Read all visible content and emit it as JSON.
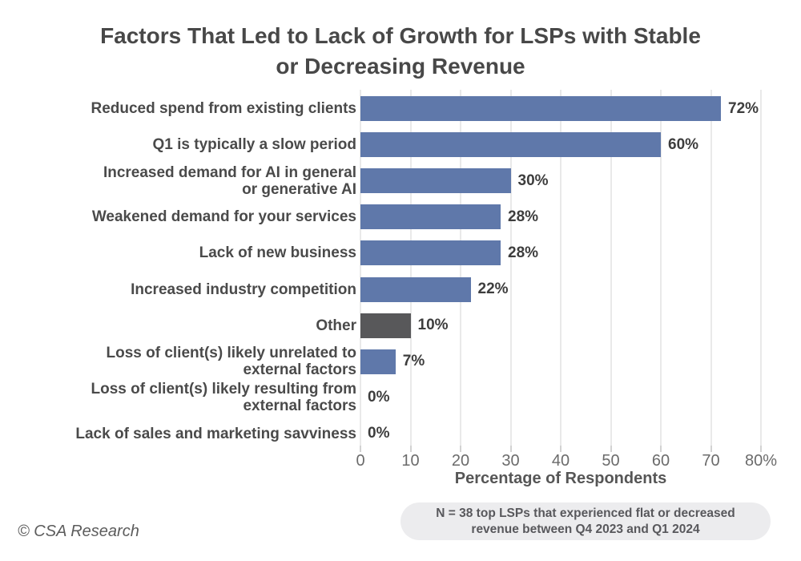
{
  "title": "Factors That Led to Lack of Growth for LSPs with Stable\nor Decreasing Revenue",
  "footnote": "N = 38 top LSPs that experienced flat or decreased\nrevenue between Q4 2023 and Q1 2024",
  "source": "© CSA Research",
  "colors": {
    "bar": "#5f78aa",
    "other_bar": "#58585a",
    "title_text": "#484848",
    "category_text": "#4a4a4a",
    "axis_text": "#6b6b6b",
    "grid": "#e9e9e9",
    "note_background": "#ececee",
    "background": "#ffffff"
  },
  "chart_data": {
    "type": "bar",
    "orientation": "horizontal",
    "title": "Factors That Led to Lack of Growth for LSPs with Stable or Decreasing Revenue",
    "xlabel": "Percentage of Respondents",
    "ylabel": "",
    "xlim": [
      0,
      80
    ],
    "xticks": [
      0,
      10,
      20,
      30,
      40,
      50,
      60,
      70,
      80
    ],
    "xtick_labels": [
      "0",
      "10",
      "20",
      "30",
      "40",
      "50",
      "60",
      "70",
      "80%"
    ],
    "grid": "vertical",
    "legend": "none",
    "categories": [
      "Reduced spend from existing clients",
      "Q1 is typically a slow period",
      "Increased demand for AI in general or generative AI",
      "Weakened demand for your services",
      "Lack of new business",
      "Increased industry competition",
      "Other",
      "Loss of client(s) likely unrelated to external factors",
      "Loss of client(s) likely resulting from external factors",
      "Lack of sales and marketing savviness"
    ],
    "values": [
      72,
      60,
      30,
      28,
      28,
      22,
      10,
      7,
      0,
      0
    ],
    "items": [
      {
        "label": "Reduced spend from existing clients",
        "value": 72,
        "value_label": "72%",
        "color": "#5f78aa"
      },
      {
        "label": "Q1 is typically a slow period",
        "value": 60,
        "value_label": "60%",
        "color": "#5f78aa"
      },
      {
        "label": "Increased demand for AI in general\nor generative AI",
        "value": 30,
        "value_label": "30%",
        "color": "#5f78aa"
      },
      {
        "label": "Weakened demand for your services",
        "value": 28,
        "value_label": "28%",
        "color": "#5f78aa"
      },
      {
        "label": "Lack of new business",
        "value": 28,
        "value_label": "28%",
        "color": "#5f78aa"
      },
      {
        "label": "Increased industry competition",
        "value": 22,
        "value_label": "22%",
        "color": "#5f78aa"
      },
      {
        "label": "Other",
        "value": 10,
        "value_label": "10%",
        "color": "#58585a"
      },
      {
        "label": "Loss of client(s) likely unrelated to\nexternal factors",
        "value": 7,
        "value_label": "7%",
        "color": "#5f78aa"
      },
      {
        "label": "Loss of client(s) likely resulting from\nexternal factors",
        "value": 0,
        "value_label": "0%",
        "color": "#5f78aa"
      },
      {
        "label": "Lack of sales and marketing savviness",
        "value": 0,
        "value_label": "0%",
        "color": "#5f78aa"
      }
    ],
    "note": "N = 38 top LSPs that experienced flat or decreased revenue between Q4 2023 and Q1 2024",
    "source": "© CSA Research"
  }
}
